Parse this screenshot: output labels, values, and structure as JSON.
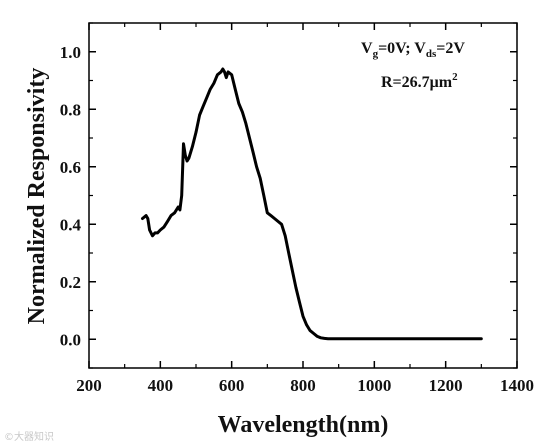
{
  "chart_data": {
    "type": "line",
    "xlabel": "Wavelength(nm)",
    "ylabel": "Normalized Responsivity",
    "xlim": [
      200,
      1400
    ],
    "ylim": [
      -0.1,
      1.1
    ],
    "xticks": [
      200,
      400,
      600,
      800,
      1000,
      1200,
      1400
    ],
    "yticks": [
      0.0,
      0.2,
      0.4,
      0.6,
      0.8,
      1.0
    ],
    "xtick_labels": [
      "200",
      "400",
      "600",
      "800",
      "1000",
      "1200",
      "1400"
    ],
    "ytick_labels": [
      "0.0",
      "0.2",
      "0.4",
      "0.6",
      "0.8",
      "1.0"
    ],
    "grid": false,
    "line_color": "#000000",
    "series": [
      {
        "x": [
          350,
          360,
          365,
          370,
          378,
          385,
          392,
          400,
          410,
          420,
          430,
          440,
          450,
          455,
          460,
          465,
          470,
          475,
          480,
          490,
          500,
          510,
          520,
          530,
          540,
          550,
          560,
          570,
          575,
          580,
          585,
          590,
          600,
          610,
          620,
          630,
          640,
          650,
          660,
          670,
          680,
          690,
          700,
          710,
          720,
          730,
          740,
          750,
          760,
          770,
          780,
          790,
          800,
          810,
          820,
          830,
          840,
          850,
          860,
          870,
          880,
          900,
          950,
          1000,
          1100,
          1200,
          1300
        ],
        "y": [
          0.42,
          0.43,
          0.42,
          0.38,
          0.36,
          0.37,
          0.37,
          0.38,
          0.39,
          0.41,
          0.43,
          0.44,
          0.46,
          0.45,
          0.5,
          0.68,
          0.64,
          0.62,
          0.63,
          0.67,
          0.72,
          0.78,
          0.81,
          0.84,
          0.87,
          0.89,
          0.92,
          0.93,
          0.94,
          0.93,
          0.91,
          0.93,
          0.92,
          0.87,
          0.82,
          0.79,
          0.75,
          0.7,
          0.65,
          0.6,
          0.56,
          0.5,
          0.44,
          0.43,
          0.42,
          0.41,
          0.4,
          0.36,
          0.3,
          0.24,
          0.18,
          0.13,
          0.08,
          0.05,
          0.03,
          0.02,
          0.01,
          0.005,
          0.003,
          0.002,
          0.002,
          0.002,
          0.002,
          0.002,
          0.002,
          0.002,
          0.002
        ]
      }
    ],
    "annotations": {
      "conditions": {
        "v": "V",
        "g_sub": "g",
        "mid": "=0V; V",
        "ds_sub": "ds",
        "tail": "=2V"
      },
      "responsivity": {
        "text": "R=26.7μm",
        "sup": "2"
      }
    }
  },
  "watermark": "©大器知识"
}
